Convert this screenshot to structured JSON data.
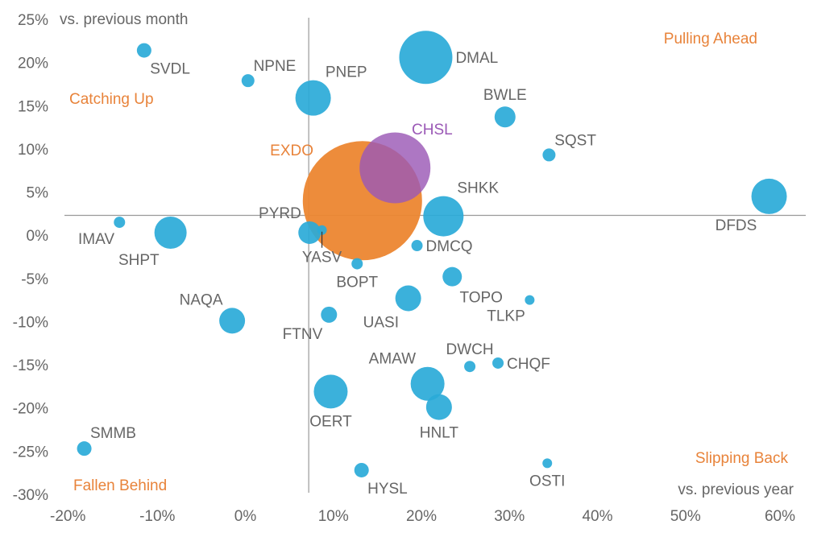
{
  "chart_data": {
    "type": "scatter",
    "title": "",
    "xlabel": "vs. previous year",
    "ylabel": "vs. previous month",
    "xlim": [
      -20,
      60
    ],
    "ylim": [
      -30,
      25
    ],
    "x_ticks": [
      "-20%",
      "-10%",
      "0%",
      "10%",
      "20%",
      "30%",
      "40%",
      "50%",
      "60%"
    ],
    "y_ticks": [
      "25%",
      "20%",
      "15%",
      "10%",
      "5%",
      "0%",
      "-5%",
      "-10%",
      "-15%",
      "-20%",
      "-25%",
      "-30%"
    ],
    "reference_lines": {
      "x": 7.2,
      "y": 2.3
    },
    "quadrants": {
      "top_left": "Catching Up",
      "top_right": "Pulling Ahead",
      "bottom_left": "Fallen Behind",
      "bottom_right": "Slipping Back"
    },
    "colors": {
      "default": "#2aaad8",
      "EXDO": "#ec8630",
      "CHSL": "#9b59b6",
      "quadrant_text": "#e8833a",
      "axis_text": "#666666",
      "gridline": "#999999"
    },
    "series": [
      {
        "name": "SVDL",
        "x": -11.5,
        "y": 21.4,
        "size": 9,
        "label_pos": "below-right"
      },
      {
        "name": "NPNE",
        "x": 0.3,
        "y": 17.9,
        "size": 8,
        "label_pos": "above-right"
      },
      {
        "name": "PNEP",
        "x": 7.7,
        "y": 15.9,
        "size": 22,
        "label_pos": "above-right"
      },
      {
        "name": "DMAL",
        "x": 20.5,
        "y": 20.6,
        "size": 33,
        "label_pos": "right"
      },
      {
        "name": "BWLE",
        "x": 29.5,
        "y": 13.7,
        "size": 13,
        "label_pos": "above"
      },
      {
        "name": "SQST",
        "x": 34.5,
        "y": 9.3,
        "size": 8,
        "label_pos": "above-right"
      },
      {
        "name": "EXDO",
        "x": 13.3,
        "y": 4.0,
        "size": 74,
        "label_pos": "left"
      },
      {
        "name": "CHSL",
        "x": 17.0,
        "y": 7.8,
        "size": 44,
        "label_pos": "above-right"
      },
      {
        "name": "SHKK",
        "x": 22.5,
        "y": 2.2,
        "size": 25,
        "label_pos": "above-right"
      },
      {
        "name": "DFDS",
        "x": 59.5,
        "y": 4.5,
        "size": 22,
        "label_pos": "below-left"
      },
      {
        "name": "IMAV",
        "x": -14.3,
        "y": 1.5,
        "size": 7,
        "label_pos": "below-left"
      },
      {
        "name": "SHPT",
        "x": -8.5,
        "y": 0.3,
        "size": 20,
        "label_pos": "below-left"
      },
      {
        "name": "PYRD",
        "x": 7.3,
        "y": 0.3,
        "size": 14,
        "label_pos": "above-left"
      },
      {
        "name": "YASV",
        "x": 8.7,
        "y": 0.6,
        "size": 6,
        "label_pos": "below"
      },
      {
        "name": "DMCQ",
        "x": 19.5,
        "y": -1.2,
        "size": 7,
        "label_pos": "right"
      },
      {
        "name": "BOPT",
        "x": 12.7,
        "y": -3.3,
        "size": 7,
        "label_pos": "below"
      },
      {
        "name": "TOPO",
        "x": 23.5,
        "y": -4.8,
        "size": 12,
        "label_pos": "below-right"
      },
      {
        "name": "TLKP",
        "x": 32.3,
        "y": -7.5,
        "size": 6,
        "label_pos": "below-left"
      },
      {
        "name": "NAQA",
        "x": -1.5,
        "y": -9.9,
        "size": 16,
        "label_pos": "above-left"
      },
      {
        "name": "UASI",
        "x": 18.5,
        "y": -7.3,
        "size": 16,
        "label_pos": "below-left"
      },
      {
        "name": "FTNV",
        "x": 9.5,
        "y": -9.2,
        "size": 10,
        "label_pos": "below-left"
      },
      {
        "name": "DWCH",
        "x": 25.5,
        "y": -15.2,
        "size": 7,
        "label_pos": "above"
      },
      {
        "name": "CHQF",
        "x": 28.7,
        "y": -14.8,
        "size": 7,
        "label_pos": "right"
      },
      {
        "name": "AMAW",
        "x": 20.7,
        "y": -17.2,
        "size": 21,
        "label_pos": "above-left"
      },
      {
        "name": "OERT",
        "x": 9.7,
        "y": -18.1,
        "size": 21,
        "label_pos": "below"
      },
      {
        "name": "HNLT",
        "x": 22.0,
        "y": -19.9,
        "size": 16,
        "label_pos": "below"
      },
      {
        "name": "SMMB",
        "x": -18.3,
        "y": -24.7,
        "size": 9,
        "label_pos": "above-right"
      },
      {
        "name": "HYSL",
        "x": 13.2,
        "y": -27.2,
        "size": 9,
        "label_pos": "below-right"
      },
      {
        "name": "OSTI",
        "x": 34.3,
        "y": -26.4,
        "size": 6,
        "label_pos": "below"
      }
    ]
  }
}
